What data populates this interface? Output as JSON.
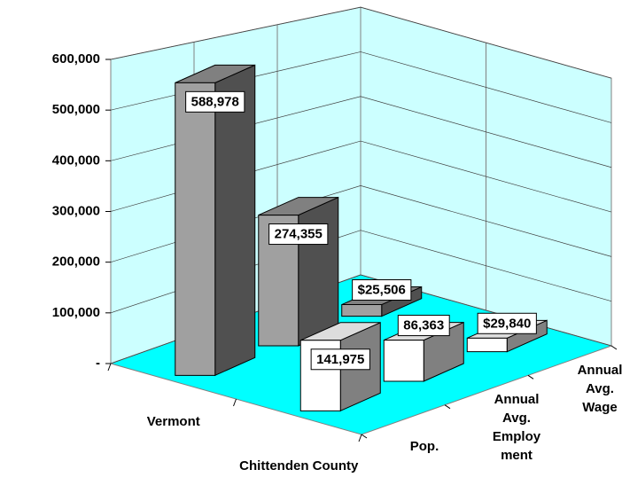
{
  "chart_data": {
    "type": "bar3d",
    "categories": [
      "Pop.",
      "Annual Avg. Employment",
      "Annual Avg. Wage"
    ],
    "series": [
      {
        "name": "Vermont",
        "color": "#a0a0a0",
        "values": [
          588978,
          274355,
          25506
        ],
        "value_labels": [
          "588,978",
          "274,355",
          "$25,506"
        ]
      },
      {
        "name": "Chittenden County",
        "color": "#ffffff",
        "values": [
          141975,
          86363,
          29840
        ],
        "value_labels": [
          "141,975",
          "86,363",
          "$29,840"
        ]
      }
    ],
    "ylim": [
      0,
      600000
    ],
    "yticks": [
      {
        "value": 0,
        "label": "-"
      },
      {
        "value": 100000,
        "label": "100,000"
      },
      {
        "value": 200000,
        "label": "200,000"
      },
      {
        "value": 300000,
        "label": "300,000"
      },
      {
        "value": 400000,
        "label": "400,000"
      },
      {
        "value": 500000,
        "label": "500,000"
      },
      {
        "value": 600000,
        "label": "600,000"
      }
    ],
    "grid": true,
    "floor_color": "#00ffff",
    "wall_color": "#ccffff"
  }
}
